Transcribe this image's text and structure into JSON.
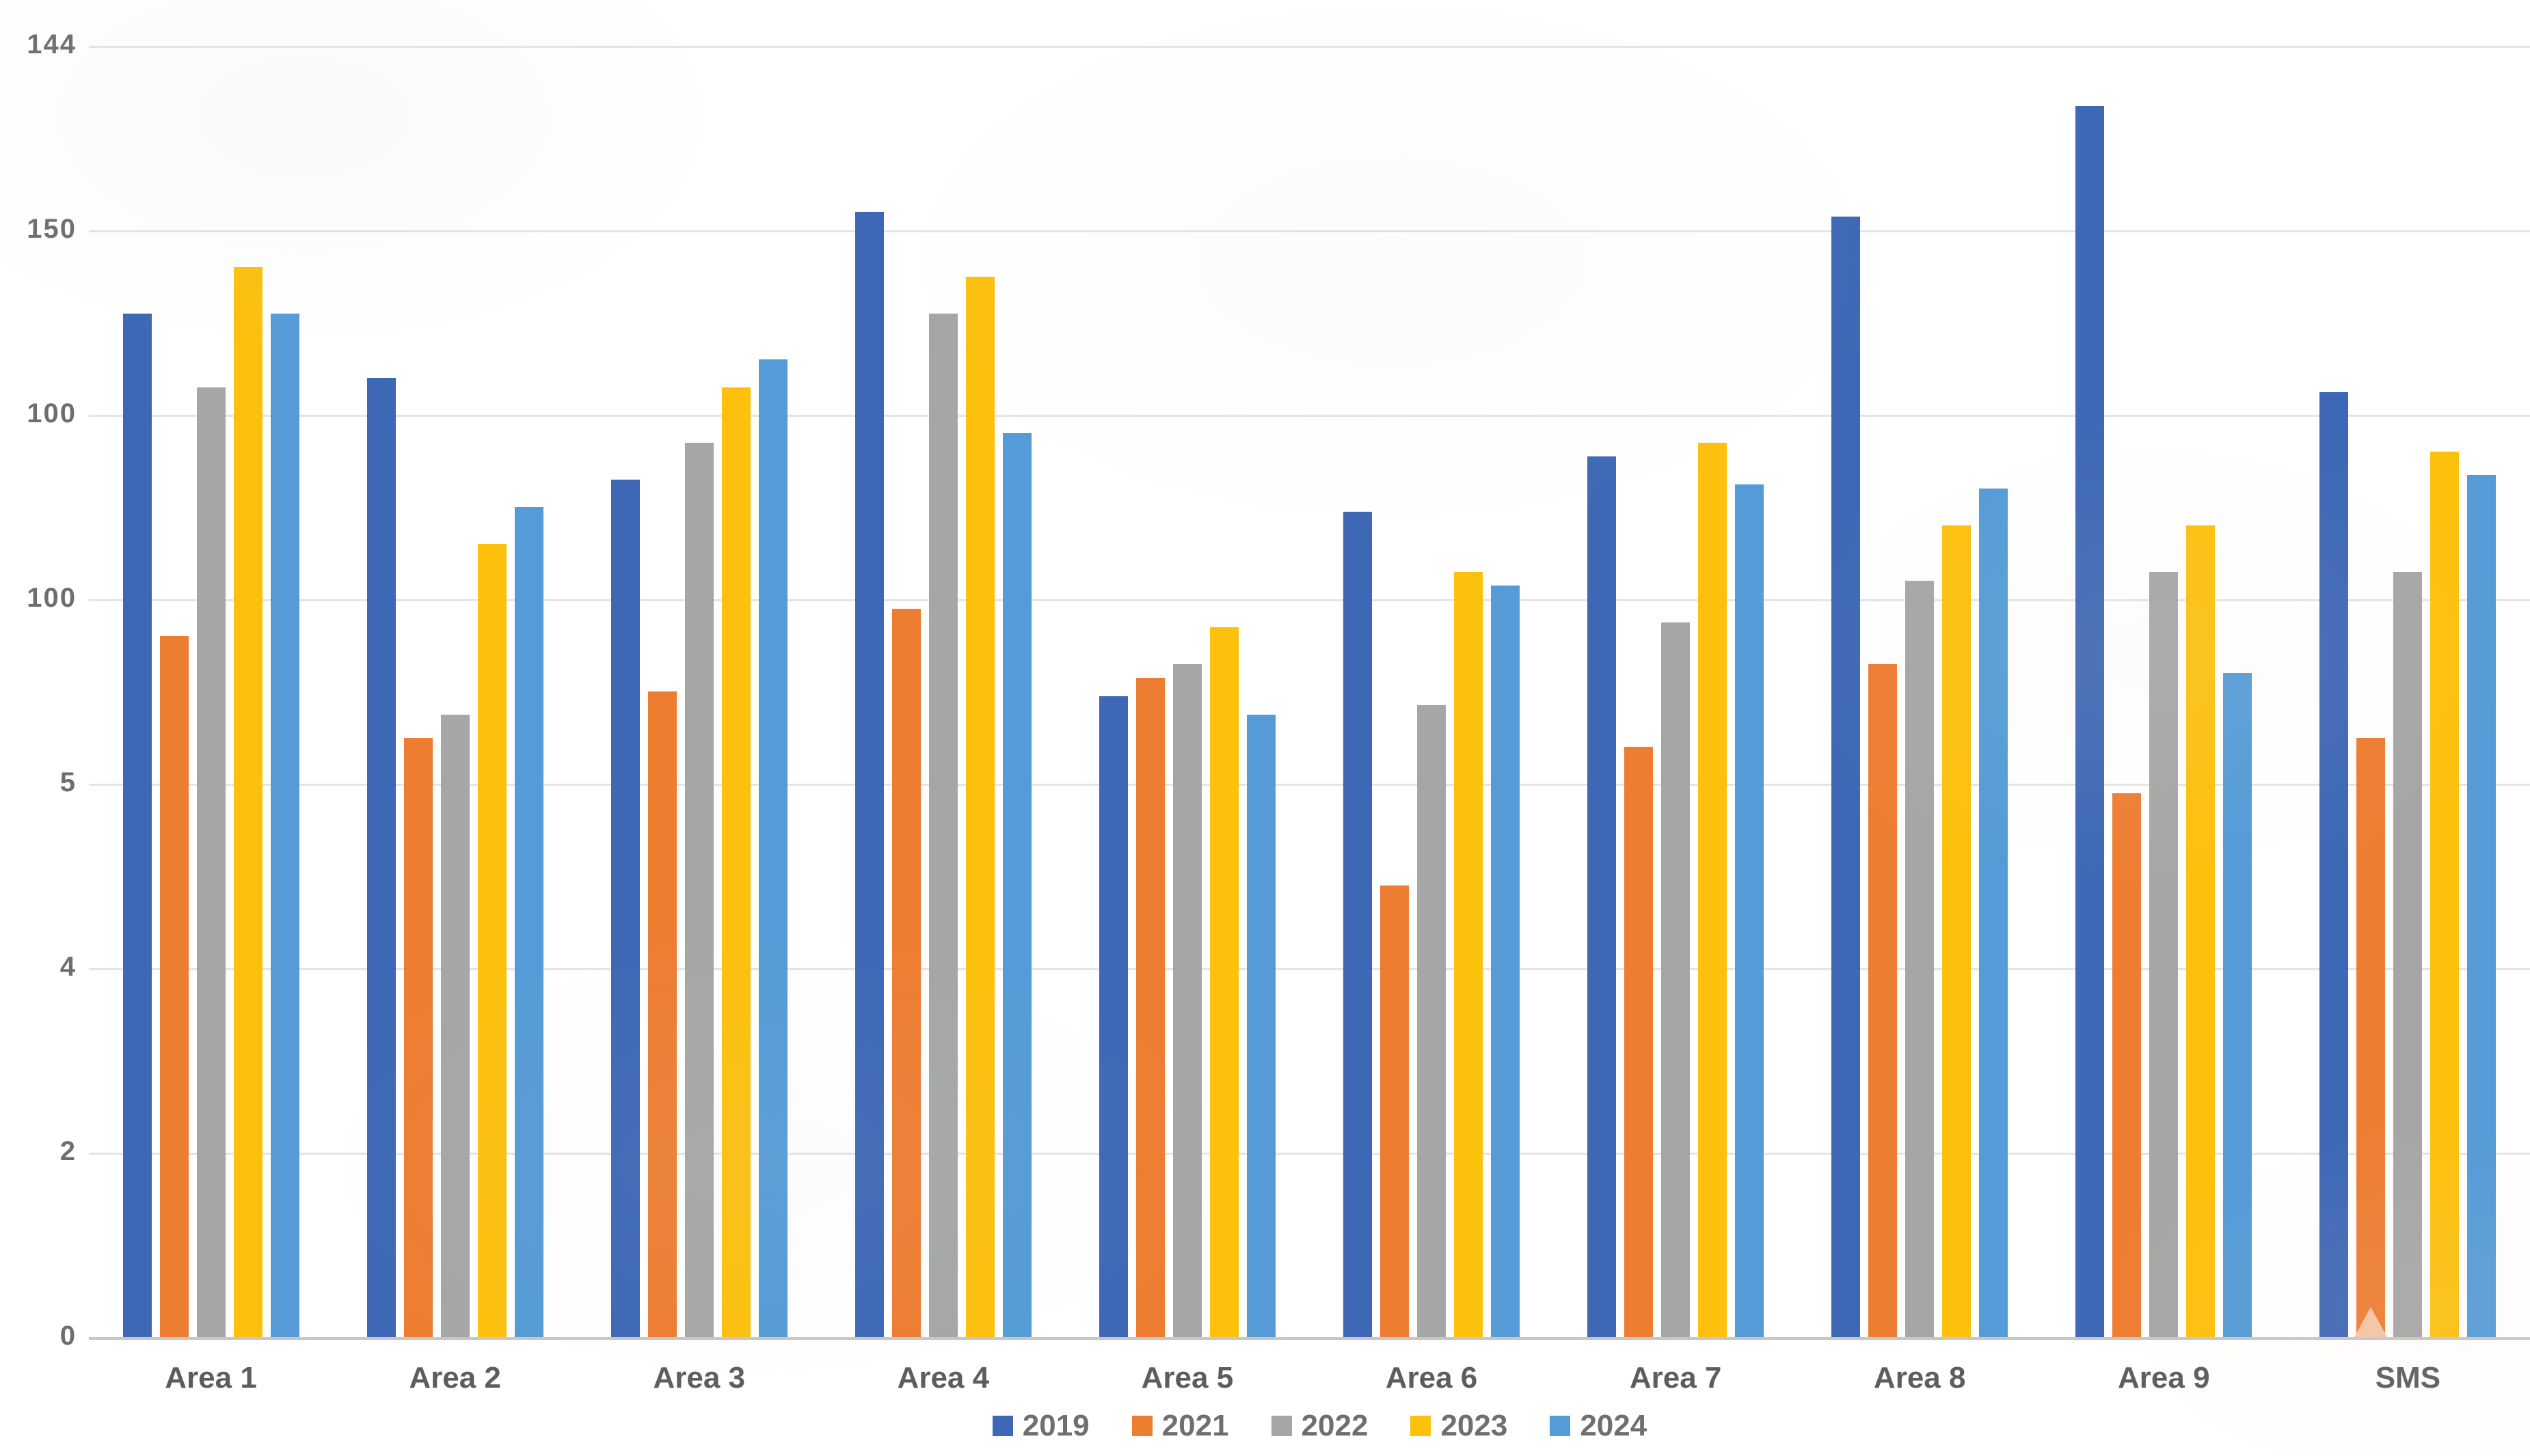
{
  "chart_data": {
    "type": "bar",
    "title": "",
    "xlabel": "",
    "ylabel": "",
    "categories": [
      "Area 1",
      "Area 2",
      "Area 3",
      "Area 4",
      "Area 5",
      "Area 6",
      "Area 7",
      "Area 8",
      "Area 9",
      "SMS"
    ],
    "series": [
      {
        "name": "2019",
        "color": "#3e68b5",
        "values": [
          111,
          104,
          93,
          122,
          69.5,
          89.5,
          95.5,
          121.5,
          133.5,
          102.5
        ]
      },
      {
        "name": "2021",
        "color": "#ed7d31",
        "values": [
          76,
          65,
          70,
          79,
          71.5,
          49,
          64,
          73,
          59,
          65
        ]
      },
      {
        "name": "2022",
        "color": "#a6a6a6",
        "values": [
          103,
          67.5,
          97,
          111,
          73,
          68.5,
          77.5,
          82,
          83,
          83
        ]
      },
      {
        "name": "2023",
        "color": "#fcc00d",
        "values": [
          116,
          86,
          103,
          115,
          77,
          83,
          97,
          88,
          88,
          96
        ]
      },
      {
        "name": "2024",
        "color": "#549bd7",
        "values": [
          111,
          90,
          106,
          98,
          67.5,
          81.5,
          92.5,
          92,
          72,
          93.5
        ]
      }
    ],
    "y_axis_tick_labels_top_to_bottom": [
      "144",
      "150",
      "100",
      "100",
      "5",
      "4",
      "2",
      "0"
    ],
    "ylim": [
      0,
      145
    ],
    "gridlines": "horizontal, evenly spaced, light gray",
    "legend_position": "bottom-center",
    "artifact": {
      "description": "small peach triangle at base of orange bar in SMS group",
      "series": "2021",
      "category": "SMS",
      "color": "#f5c5a5"
    }
  }
}
